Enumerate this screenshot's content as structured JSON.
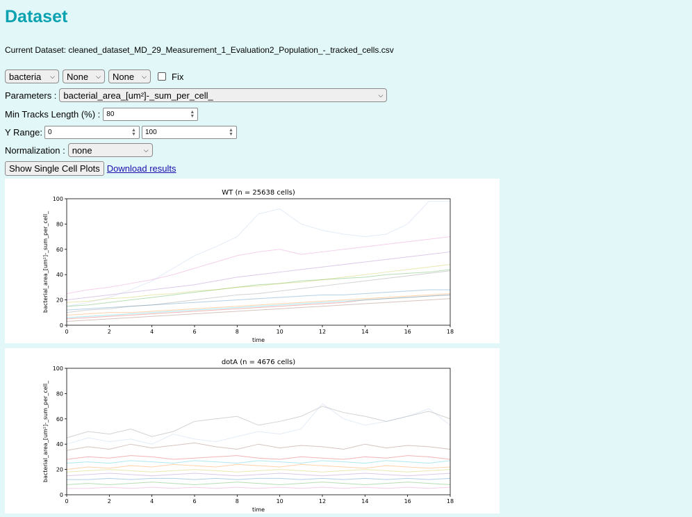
{
  "page": {
    "title": "Dataset",
    "current_dataset_label": "Current Dataset:",
    "current_dataset_value": "cleaned_dataset_MD_29_Measurement_1_Evaluation2_Population_-_tracked_cells.csv"
  },
  "filters": {
    "selects": [
      "bacteria",
      "None",
      "None"
    ],
    "fix_label": "Fix",
    "fix_checked": false
  },
  "parameters": {
    "label": "Parameters :",
    "value": "bacterial_area_[um²]-_sum_per_cell_"
  },
  "min_tracks": {
    "label": "Min Tracks Length (%) :",
    "value": "80"
  },
  "y_range": {
    "label": "Y Range:",
    "min": "0",
    "max": "100"
  },
  "normalization": {
    "label": "Normalization :",
    "value": "none"
  },
  "actions": {
    "show_plots": "Show Single Cell Plots",
    "download": "Download results"
  },
  "chart_data": [
    {
      "type": "line",
      "title": "WT (n = 25638 cells)",
      "xlabel": "time",
      "ylabel": "bacterial_area_[um²]-_sum_per_cell_",
      "xlim": [
        0,
        18
      ],
      "ylim": [
        0,
        100
      ],
      "xticks": [
        0,
        2,
        4,
        6,
        8,
        10,
        12,
        14,
        16,
        18
      ],
      "yticks": [
        0,
        20,
        40,
        60,
        80,
        100
      ],
      "x": [
        0,
        1,
        2,
        3,
        4,
        5,
        6,
        7,
        8,
        9,
        10,
        11,
        12,
        13,
        14,
        15,
        16,
        17,
        18
      ],
      "series": [
        {
          "color": "#1f77b4",
          "values": [
            12,
            13,
            14,
            15,
            16,
            17,
            18,
            19,
            20,
            21,
            22,
            23,
            24,
            24,
            25,
            26,
            27,
            28,
            28
          ]
        },
        {
          "color": "#ff7f0e",
          "values": [
            8,
            9,
            10,
            10,
            11,
            12,
            13,
            14,
            15,
            16,
            17,
            18,
            19,
            20,
            21,
            22,
            23,
            24,
            25
          ]
        },
        {
          "color": "#2ca02c",
          "values": [
            15,
            16,
            18,
            20,
            22,
            24,
            26,
            28,
            30,
            32,
            33,
            35,
            36,
            37,
            38,
            40,
            41,
            42,
            44
          ]
        },
        {
          "color": "#d62728",
          "values": [
            5,
            6,
            7,
            8,
            9,
            10,
            11,
            12,
            13,
            14,
            15,
            16,
            17,
            18,
            20,
            21,
            22,
            23,
            24
          ]
        },
        {
          "color": "#9467bd",
          "values": [
            20,
            22,
            24,
            26,
            28,
            30,
            32,
            35,
            38,
            40,
            42,
            44,
            46,
            48,
            50,
            52,
            54,
            56,
            58
          ]
        },
        {
          "color": "#8c564b",
          "values": [
            3,
            4,
            5,
            6,
            7,
            8,
            9,
            10,
            11,
            12,
            13,
            14,
            15,
            16,
            17,
            18,
            19,
            20,
            21
          ]
        },
        {
          "color": "#e377c2",
          "values": [
            25,
            28,
            30,
            33,
            36,
            40,
            45,
            50,
            55,
            58,
            60,
            56,
            58,
            60,
            62,
            64,
            66,
            68,
            70
          ]
        },
        {
          "color": "#7f7f7f",
          "values": [
            10,
            12,
            13,
            15,
            16,
            18,
            20,
            22,
            24,
            25,
            27,
            29,
            31,
            33,
            35,
            37,
            39,
            41,
            43
          ]
        },
        {
          "color": "#bcbd22",
          "values": [
            18,
            19,
            21,
            22,
            24,
            25,
            27,
            28,
            30,
            31,
            33,
            34,
            36,
            38,
            40,
            42,
            44,
            46,
            48
          ]
        },
        {
          "color": "#17becf",
          "values": [
            6,
            7,
            8,
            9,
            10,
            11,
            12,
            13,
            14,
            15,
            16,
            17,
            18,
            19,
            20,
            21,
            22,
            23,
            24
          ]
        },
        {
          "color": "#aec7e8",
          "values": [
            15,
            18,
            22,
            28,
            35,
            45,
            55,
            62,
            70,
            88,
            92,
            80,
            75,
            72,
            70,
            72,
            80,
            98,
            98
          ]
        }
      ]
    },
    {
      "type": "line",
      "title": "dotA (n = 4676 cells)",
      "xlabel": "time",
      "ylabel": "bacterial_area_[um²]-_sum_per_cell_",
      "xlim": [
        0,
        18
      ],
      "ylim": [
        0,
        100
      ],
      "xticks": [
        0,
        2,
        4,
        6,
        8,
        10,
        12,
        14,
        16,
        18
      ],
      "yticks": [
        0,
        20,
        40,
        60,
        80,
        100
      ],
      "x": [
        0,
        1,
        2,
        3,
        4,
        5,
        6,
        7,
        8,
        9,
        10,
        11,
        12,
        13,
        14,
        15,
        16,
        17,
        18
      ],
      "series": [
        {
          "color": "#1f77b4",
          "values": [
            12,
            12,
            13,
            12,
            13,
            13,
            12,
            13,
            12,
            13,
            13,
            12,
            13,
            12,
            13,
            12,
            13,
            12,
            13
          ]
        },
        {
          "color": "#ff7f0e",
          "values": [
            20,
            22,
            21,
            23,
            22,
            24,
            23,
            22,
            24,
            23,
            22,
            24,
            23,
            22,
            21,
            23,
            22,
            21,
            22
          ]
        },
        {
          "color": "#2ca02c",
          "values": [
            8,
            9,
            8,
            9,
            10,
            9,
            8,
            9,
            10,
            9,
            8,
            9,
            10,
            9,
            8,
            9,
            10,
            9,
            8
          ]
        },
        {
          "color": "#d62728",
          "values": [
            28,
            30,
            29,
            31,
            30,
            28,
            29,
            30,
            31,
            29,
            28,
            30,
            29,
            28,
            30,
            29,
            31,
            30,
            28
          ]
        },
        {
          "color": "#9467bd",
          "values": [
            15,
            16,
            17,
            16,
            15,
            16,
            17,
            16,
            15,
            16,
            17,
            16,
            15,
            16,
            17,
            16,
            15,
            16,
            17
          ]
        },
        {
          "color": "#8c564b",
          "values": [
            35,
            38,
            36,
            40,
            37,
            39,
            41,
            38,
            36,
            40,
            37,
            39,
            38,
            36,
            40,
            37,
            39,
            38,
            36
          ]
        },
        {
          "color": "#e377c2",
          "values": [
            5,
            5,
            6,
            5,
            6,
            5,
            6,
            5,
            6,
            5,
            6,
            5,
            6,
            5,
            6,
            5,
            6,
            5,
            6
          ]
        },
        {
          "color": "#7f7f7f",
          "values": [
            45,
            50,
            48,
            52,
            46,
            50,
            58,
            60,
            62,
            55,
            58,
            62,
            70,
            65,
            62,
            58,
            62,
            66,
            60
          ]
        },
        {
          "color": "#bcbd22",
          "values": [
            18,
            19,
            20,
            19,
            18,
            19,
            20,
            19,
            18,
            19,
            20,
            19,
            18,
            19,
            20,
            19,
            18,
            19,
            20
          ]
        },
        {
          "color": "#17becf",
          "values": [
            25,
            26,
            25,
            27,
            26,
            25,
            27,
            26,
            25,
            27,
            26,
            25,
            27,
            26,
            25,
            27,
            26,
            25,
            27
          ]
        },
        {
          "color": "#aec7e8",
          "values": [
            40,
            45,
            42,
            44,
            40,
            48,
            44,
            42,
            46,
            50,
            48,
            52,
            72,
            60,
            55,
            58,
            62,
            68,
            55
          ]
        }
      ]
    }
  ]
}
